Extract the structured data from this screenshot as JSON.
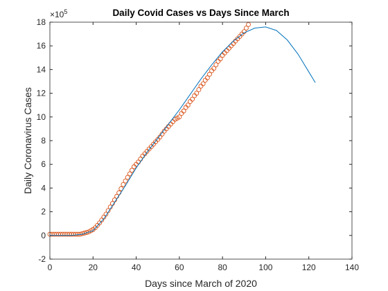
{
  "chart_data": {
    "type": "scatter",
    "title": "Daily Covid Cases vs Days Since March",
    "x_label": "Days since March of 2020",
    "y_label": "Daily Coronavirus Cases",
    "y_exponent": {
      "base": "×10",
      "power": "5"
    },
    "xlim": [
      0,
      140
    ],
    "xticks": [
      0,
      20,
      40,
      60,
      80,
      100,
      120,
      140
    ],
    "ylim": [
      -2,
      18
    ],
    "yticks": [
      -2,
      0,
      2,
      4,
      6,
      8,
      10,
      12,
      14,
      16,
      18
    ],
    "box": true,
    "series": [
      {
        "type": "scatter",
        "color": "#D95319",
        "x": [
          0,
          1,
          2,
          3,
          4,
          5,
          6,
          7,
          8,
          9,
          10,
          11,
          12,
          13,
          14,
          15,
          16,
          17,
          18,
          19,
          20,
          21,
          22,
          23,
          24,
          25,
          26,
          27,
          28,
          29,
          30,
          31,
          32,
          33,
          34,
          35,
          36,
          37,
          38,
          39,
          40,
          41,
          42,
          43,
          44,
          45,
          46,
          47,
          48,
          49,
          50,
          51,
          52,
          53,
          54,
          55,
          56,
          57,
          58,
          59,
          60,
          61,
          62,
          63,
          64,
          65,
          66,
          67,
          68,
          69,
          70,
          71,
          72,
          73,
          74,
          75,
          76,
          77,
          78,
          79,
          80,
          81,
          82,
          83,
          84,
          85,
          86,
          87,
          88,
          89,
          90,
          91,
          92
        ],
        "values": [
          0.1,
          0.1,
          0.1,
          0.1,
          0.1,
          0.1,
          0.1,
          0.1,
          0.1,
          0.1,
          0.1,
          0.1,
          0.1,
          0.1,
          0.1,
          0.15,
          0.2,
          0.25,
          0.3,
          0.4,
          0.5,
          0.65,
          0.85,
          1.05,
          1.3,
          1.55,
          1.8,
          2.1,
          2.4,
          2.7,
          3.0,
          3.3,
          3.6,
          3.95,
          4.3,
          4.6,
          4.9,
          5.2,
          5.5,
          5.8,
          6.0,
          6.2,
          6.45,
          6.7,
          6.9,
          7.1,
          7.3,
          7.5,
          7.7,
          7.9,
          8.1,
          8.3,
          8.55,
          8.8,
          9.0,
          9.2,
          9.4,
          9.6,
          9.8,
          9.9,
          10.0,
          10.3,
          10.5,
          10.8,
          11.0,
          11.3,
          11.5,
          11.8,
          12.0,
          12.3,
          12.6,
          12.8,
          13.1,
          13.3,
          13.6,
          13.9,
          14.1,
          14.4,
          14.7,
          14.9,
          15.2,
          15.4,
          15.6,
          15.8,
          16.0,
          16.2,
          16.4,
          16.6,
          16.8,
          17.0,
          17.2,
          17.5,
          17.8
        ]
      },
      {
        "type": "line",
        "color": "#0072BD",
        "x": [
          0,
          5,
          10,
          15,
          20,
          25,
          30,
          35,
          40,
          45,
          50,
          55,
          60,
          65,
          70,
          75,
          80,
          85,
          90,
          95,
          100,
          105,
          110,
          115,
          120,
          123
        ],
        "values": [
          0,
          0,
          0,
          0.1,
          0.4,
          1.4,
          2.8,
          4.2,
          5.7,
          7.0,
          8.2,
          9.4,
          10.6,
          11.9,
          13.2,
          14.4,
          15.5,
          16.4,
          17.1,
          17.5,
          17.6,
          17.3,
          16.5,
          15.3,
          13.8,
          12.9
        ]
      }
    ]
  }
}
